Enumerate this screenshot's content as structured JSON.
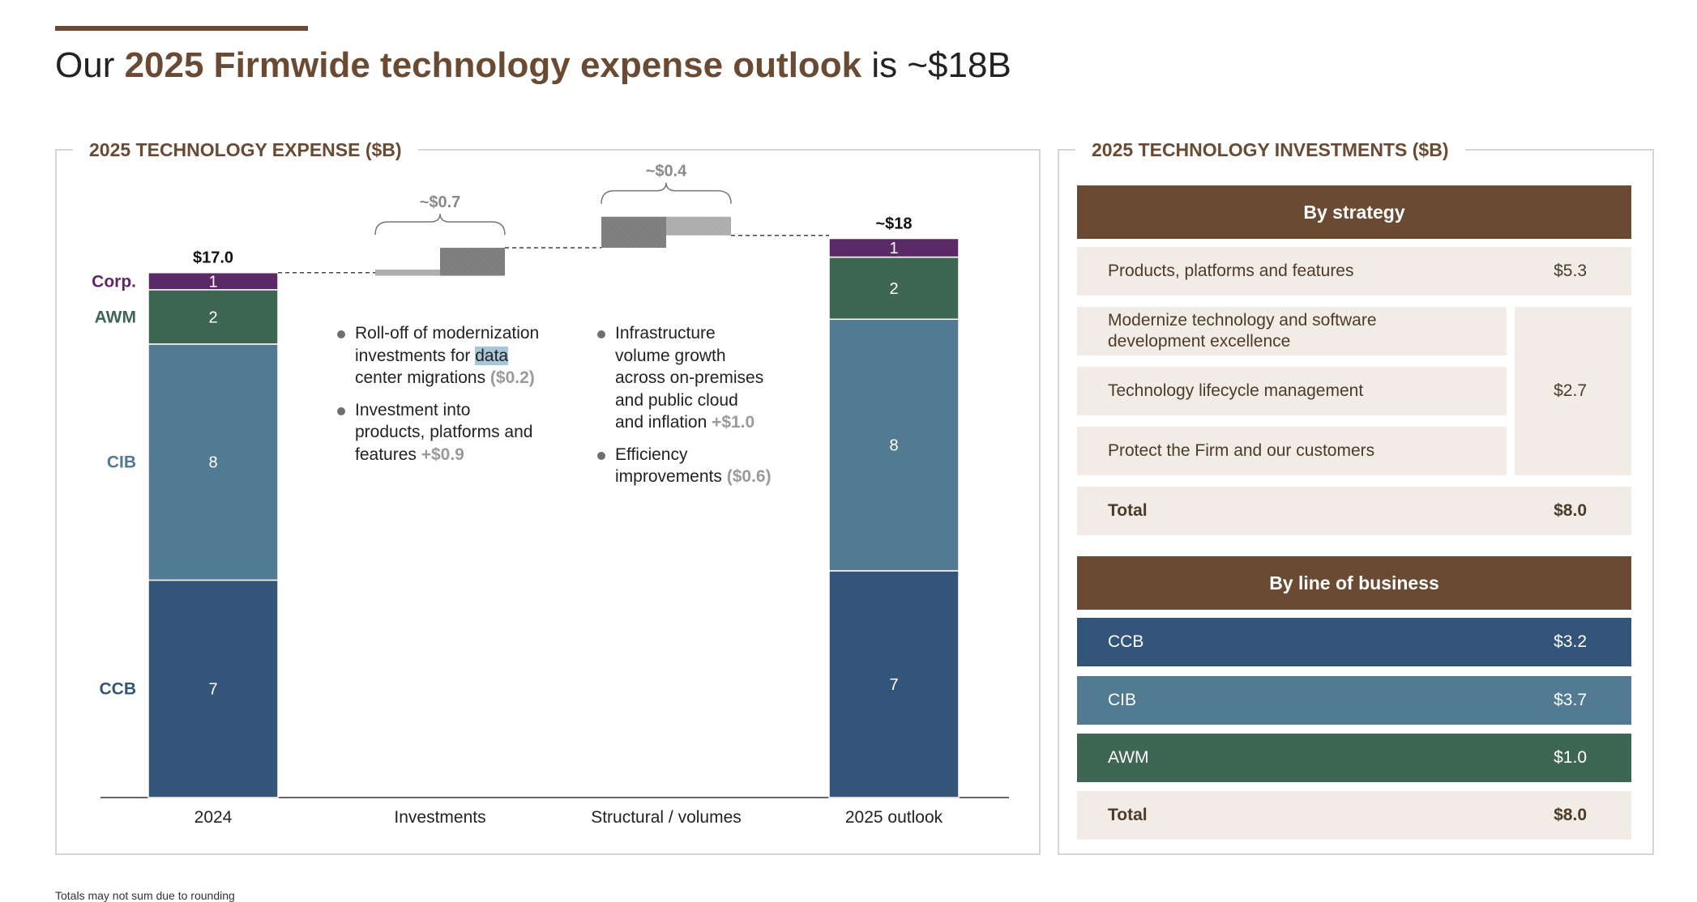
{
  "title": {
    "prefix": "Our ",
    "highlight": "2025 Firmwide technology expense outlook",
    "suffix": " is ~$18B"
  },
  "left_panel": {
    "title": "2025 TECHNOLOGY EXPENSE ($B)"
  },
  "right_panel": {
    "title": "2025 TECHNOLOGY INVESTMENTS ($B)"
  },
  "colors": {
    "brand": "#6a4a33",
    "ccb": "#34557a",
    "cib": "#527a93",
    "awm": "#3d6653",
    "corp": "#5b2a66",
    "gray_dark": "#838383",
    "gray_light": "#b1b1b1",
    "row_bg": "#f1ede6"
  },
  "chart_data": {
    "type": "bar",
    "subtype": "waterfall-stacked",
    "categories": [
      "2024",
      "Investments",
      "Structural / volumes",
      "2025 outlook"
    ],
    "segment_labels": [
      "CCB",
      "CIB",
      "AWM",
      "Corp."
    ],
    "stacks": {
      "2024": {
        "total_label": "$17.0",
        "total": 17.0,
        "segments": [
          {
            "name": "CCB",
            "value": 7.0,
            "label": "7"
          },
          {
            "name": "CIB",
            "value": 7.6,
            "label": "8"
          },
          {
            "name": "AWM",
            "value": 1.75,
            "label": "2"
          },
          {
            "name": "Corp.",
            "value": 0.55,
            "label": "1"
          }
        ]
      },
      "2025 outlook": {
        "total_label": "~$18",
        "total": 18.0,
        "segments": [
          {
            "name": "CCB",
            "value": 7.3,
            "label": "7"
          },
          {
            "name": "CIB",
            "value": 8.1,
            "label": "8"
          },
          {
            "name": "AWM",
            "value": 2.0,
            "label": "2"
          },
          {
            "name": "Corp.",
            "value": 0.6,
            "label": "1"
          }
        ]
      }
    },
    "steps": [
      {
        "category": "Investments",
        "net_label": "~$0.7",
        "start": 17.0,
        "deltas": [
          -0.2,
          0.9
        ]
      },
      {
        "category": "Structural / volumes",
        "net_label": "~$0.4",
        "start": 17.7,
        "deltas": [
          1.0,
          -0.6
        ]
      }
    ],
    "ylim": [
      0,
      18.9
    ]
  },
  "notes": {
    "investments": [
      {
        "parts": [
          "Roll-off of modernization",
          "investments for ",
          "data",
          "center migrations ",
          "($0.2)"
        ]
      },
      {
        "parts": [
          "Investment into",
          "products, platforms and",
          "features ",
          "+$0.9"
        ]
      }
    ],
    "structural": [
      {
        "parts": [
          "Infrastructure",
          "volume growth",
          "across on-premises",
          "and public cloud",
          "and inflation ",
          "+$1.0"
        ]
      },
      {
        "parts": [
          "Efficiency",
          "improvements ",
          "($0.6)"
        ]
      }
    ]
  },
  "strategy": {
    "header": "By strategy",
    "row1": {
      "label": "Products, platforms and features",
      "value": "$5.3"
    },
    "sub": [
      {
        "label": "Modernize technology and software development excellence"
      },
      {
        "label": "Technology lifecycle management"
      },
      {
        "label": "Protect the Firm and our customers"
      }
    ],
    "sub_value": "$2.7",
    "total": {
      "label": "Total",
      "value": "$8.0"
    }
  },
  "lob": {
    "header": "By line of business",
    "rows": [
      {
        "label": "CCB",
        "value": "$3.2"
      },
      {
        "label": "CIB",
        "value": "$3.7"
      },
      {
        "label": "AWM",
        "value": "$1.0"
      }
    ],
    "total": {
      "label": "Total",
      "value": "$8.0"
    }
  },
  "footnote": "Totals may not sum due to rounding"
}
